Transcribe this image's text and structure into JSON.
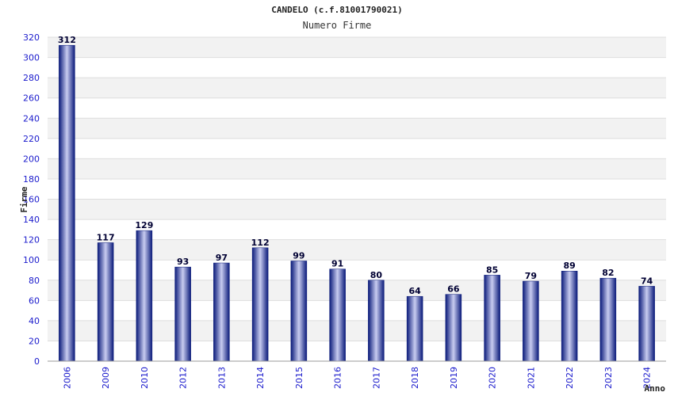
{
  "chart_data": {
    "type": "bar",
    "title": "CANDELO (c.f.81001790021)",
    "subtitle": "Numero Firme",
    "xlabel": "Anno",
    "ylabel": "Firme",
    "categories": [
      "2006",
      "2009",
      "2010",
      "2012",
      "2013",
      "2014",
      "2015",
      "2016",
      "2017",
      "2018",
      "2019",
      "2020",
      "2021",
      "2022",
      "2023",
      "2024"
    ],
    "values": [
      312,
      117,
      129,
      93,
      97,
      112,
      99,
      91,
      80,
      64,
      66,
      85,
      79,
      89,
      82,
      74
    ],
    "ylim": [
      0,
      320
    ],
    "ystep": 20,
    "grid": true,
    "colors": {
      "bar_dark": "#0a1a7a",
      "bar_light": "#c8ccf0",
      "band": "#f2f2f2",
      "tick": "#1a1acc"
    }
  }
}
